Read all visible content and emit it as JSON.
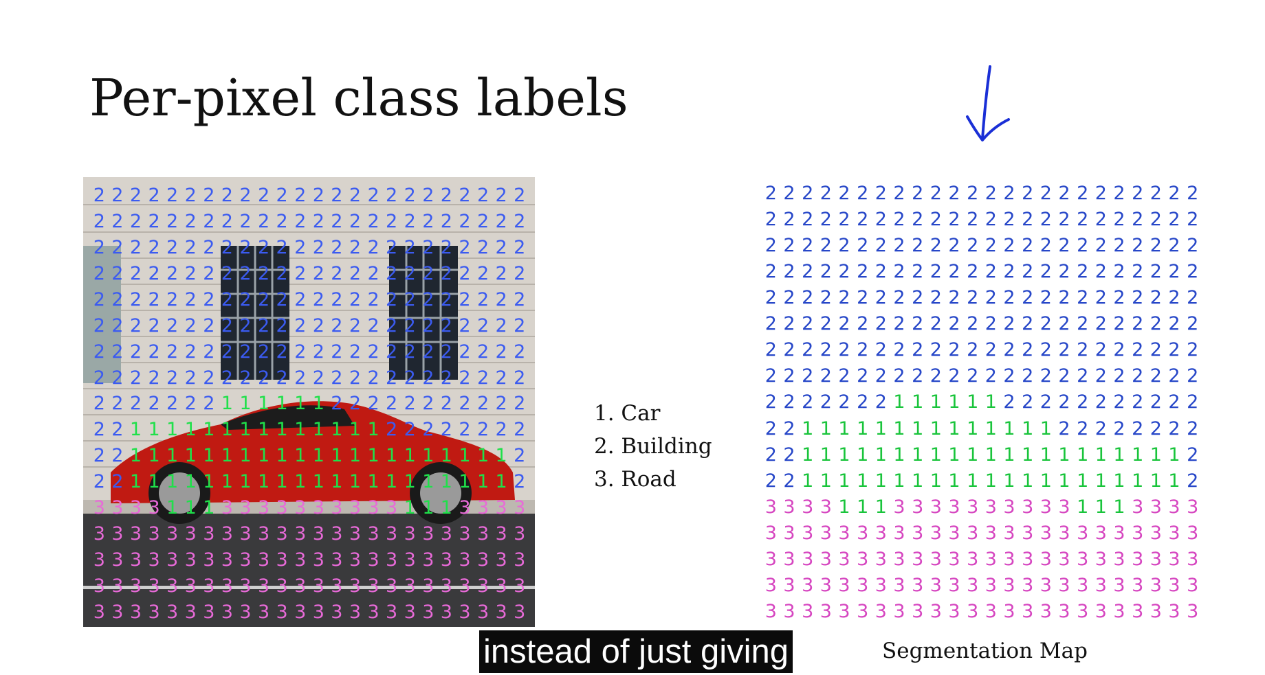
{
  "slide": {
    "title": "Per-pixel class labels"
  },
  "legend": {
    "items": [
      "1. Car",
      "2. Building",
      "3. Road"
    ]
  },
  "map_caption": "Segmentation Map",
  "subtitle": "instead of just giving",
  "colors": {
    "class_1": "#19c43b",
    "class_2": "#2747c8",
    "class_3": "#d646c0"
  },
  "label_grid": [
    "222222222222222222222222",
    "222222222222222222222222",
    "222222222222222222222222",
    "222222222222222222222222",
    "222222222222222222222222",
    "222222222222222222222222",
    "222222222222222222222222",
    "222222222222222222222222",
    "222222211111122222222222",
    "221111111111111122222222",
    "221111111111111111111112",
    "221111111111111111111112",
    "333311133333333331113333",
    "333333333333333333333333",
    "333333333333333333333333",
    "333333333333333333333333",
    "333333333333333333333333"
  ],
  "photo_grid": [
    "222222222222222222222222",
    "222222222222222222222222",
    "222222222222222222222222",
    "222222222222222222222222",
    "222222222222222222222222",
    "222222222222222222222222",
    "222222222222222222222222",
    "222222222222222222222222",
    "222222211111122222222222",
    "221111111111111122222222",
    "221111111111111111111112",
    "221111111111111111111112",
    "333311133333333331113333",
    "333333333333333333333333",
    "333333333333333333333333",
    "333333333333333333333333",
    "333333333333333333333333"
  ]
}
